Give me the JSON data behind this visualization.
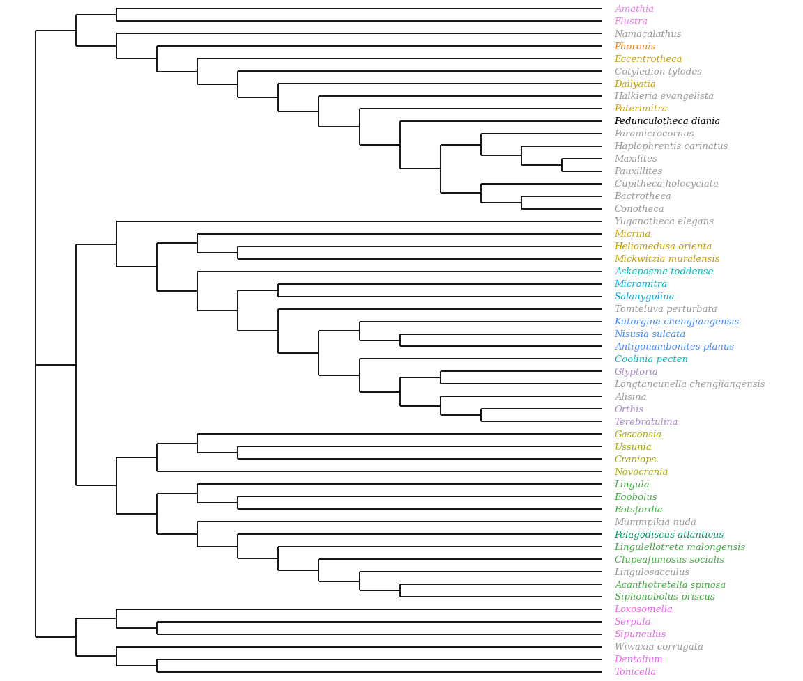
{
  "taxa": [
    {
      "name": "Amathia",
      "color": "#e87de8"
    },
    {
      "name": "Flustra",
      "color": "#e87de8"
    },
    {
      "name": "Namacalathus",
      "color": "#999999"
    },
    {
      "name": "Phoronis",
      "color": "#e8821e"
    },
    {
      "name": "Eccentrotheca",
      "color": "#c8a000"
    },
    {
      "name": "Cotyledion tylodes",
      "color": "#999999"
    },
    {
      "name": "Dailyatia",
      "color": "#c8a000"
    },
    {
      "name": "Halkieria evangelista",
      "color": "#999999"
    },
    {
      "name": "Paterimitra",
      "color": "#c8a000"
    },
    {
      "name": "Pedunculotheca diania",
      "color": "#000000"
    },
    {
      "name": "Paramicrocornus",
      "color": "#999999"
    },
    {
      "name": "Haplophrentis carinatus",
      "color": "#999999"
    },
    {
      "name": "Maxilites",
      "color": "#999999"
    },
    {
      "name": "Pauxillites",
      "color": "#999999"
    },
    {
      "name": "Cupitheca holocyclata",
      "color": "#999999"
    },
    {
      "name": "Bactrotheca",
      "color": "#999999"
    },
    {
      "name": "Conotheca",
      "color": "#999999"
    },
    {
      "name": "Yuganotheca elegans",
      "color": "#999999"
    },
    {
      "name": "Micrina",
      "color": "#c8a000"
    },
    {
      "name": "Heliomedusa orienta",
      "color": "#c8a000"
    },
    {
      "name": "Mickwitzia muralensis",
      "color": "#c8a000"
    },
    {
      "name": "Askepasma toddense",
      "color": "#00bbbb"
    },
    {
      "name": "Micromitra",
      "color": "#00aadd"
    },
    {
      "name": "Salanygolina",
      "color": "#00aadd"
    },
    {
      "name": "Tomteluva perturbata",
      "color": "#999999"
    },
    {
      "name": "Kutorgina chengjiangensis",
      "color": "#4488ff"
    },
    {
      "name": "Nisusia sulcata",
      "color": "#4488ff"
    },
    {
      "name": "Antigonambonites planus",
      "color": "#4488ff"
    },
    {
      "name": "Coolinia pecten",
      "color": "#00bbbb"
    },
    {
      "name": "Glyptoria",
      "color": "#aa88cc"
    },
    {
      "name": "Longtancunella chengjiangensis",
      "color": "#999999"
    },
    {
      "name": "Alisina",
      "color": "#999999"
    },
    {
      "name": "Orthis",
      "color": "#aa88cc"
    },
    {
      "name": "Terebratulina",
      "color": "#aa88cc"
    },
    {
      "name": "Gasconsia",
      "color": "#aaaa00"
    },
    {
      "name": "Ussunia",
      "color": "#aaaa00"
    },
    {
      "name": "Craniops",
      "color": "#aaaa00"
    },
    {
      "name": "Novocrania",
      "color": "#aaaa00"
    },
    {
      "name": "Lingula",
      "color": "#44aa44"
    },
    {
      "name": "Eoobolus",
      "color": "#44aa44"
    },
    {
      "name": "Botsfordia",
      "color": "#44aa44"
    },
    {
      "name": "Mummpikia nuda",
      "color": "#999999"
    },
    {
      "name": "Pelagodiscus atlanticus",
      "color": "#009966"
    },
    {
      "name": "Lingulellotreta malongensis",
      "color": "#44aa44"
    },
    {
      "name": "Clupeafumosus socialis",
      "color": "#44aa44"
    },
    {
      "name": "Lingulosacculus",
      "color": "#999999"
    },
    {
      "name": "Acanthotretella spinosa",
      "color": "#44aa44"
    },
    {
      "name": "Siphonobolus priscus",
      "color": "#44aa44"
    },
    {
      "name": "Loxosomella",
      "color": "#ee66ee"
    },
    {
      "name": "Serpula",
      "color": "#ee66ee"
    },
    {
      "name": "Sipunculus",
      "color": "#ee66ee"
    },
    {
      "name": "Wiwaxia corrugata",
      "color": "#999999"
    },
    {
      "name": "Dentalium",
      "color": "#ee66ee"
    },
    {
      "name": "Tonicella",
      "color": "#ee66ee"
    }
  ],
  "figsize": [
    11.52,
    9.79
  ],
  "dpi": 100,
  "bg_color": "#ffffff",
  "line_color": "#000000",
  "line_width": 1.3
}
